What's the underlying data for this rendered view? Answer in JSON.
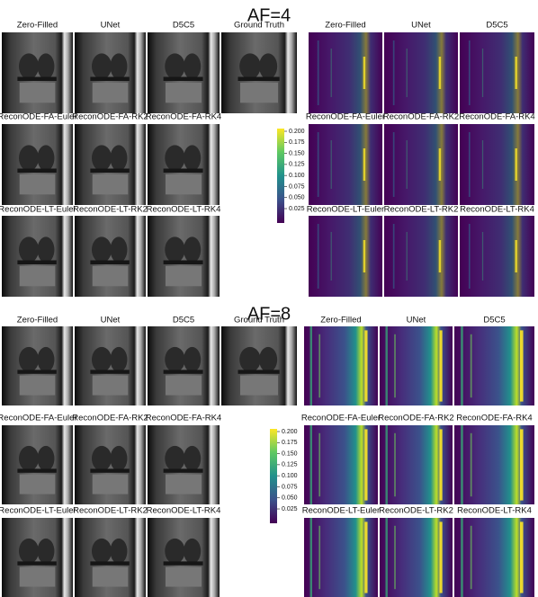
{
  "sections": [
    {
      "title": "AF=4",
      "reconstructions": [
        [
          "Zero-Filled",
          "UNet",
          "D5C5",
          "Ground Truth"
        ],
        [
          "ReconODE-FA-Euler",
          "ReconODE-FA-RK2",
          "ReconODE-FA-RK4"
        ],
        [
          "ReconODE-LT-Euler",
          "ReconODE-LT-RK2",
          "ReconODE-LT-RK4"
        ]
      ],
      "error_maps": [
        [
          "Zero-Filled",
          "UNet",
          "D5C5"
        ],
        [
          "ReconODE-FA-Euler",
          "ReconODE-FA-RK2",
          "ReconODE-FA-RK4"
        ],
        [
          "ReconODE-LT-Euler",
          "ReconODE-LT-RK2",
          "ReconODE-LT-RK4"
        ]
      ],
      "colorbar_ticks": [
        "0.200",
        "0.175",
        "0.150",
        "0.125",
        "0.100",
        "0.075",
        "0.050",
        "0.025"
      ]
    },
    {
      "title": "AF=8",
      "reconstructions": [
        [
          "Zero-Filled",
          "UNet",
          "D5C5",
          "Ground Truth"
        ],
        [
          "ReconODE-FA-Euler",
          "ReconODE-FA-RK2",
          "ReconODE-FA-RK4"
        ],
        [
          "ReconODE-LT-Euler",
          "ReconODE-LT-RK2",
          "ReconODE-LT-RK4"
        ]
      ],
      "error_maps": [
        [
          "Zero-Filled",
          "UNet",
          "D5C5"
        ],
        [
          "ReconODE-FA-Euler",
          "ReconODE-FA-RK2",
          "ReconODE-FA-RK4"
        ],
        [
          "ReconODE-LT-Euler",
          "ReconODE-LT-RK2",
          "ReconODE-LT-RK4"
        ]
      ],
      "colorbar_ticks": [
        "0.200",
        "0.175",
        "0.150",
        "0.125",
        "0.100",
        "0.075",
        "0.050",
        "0.025"
      ]
    }
  ]
}
